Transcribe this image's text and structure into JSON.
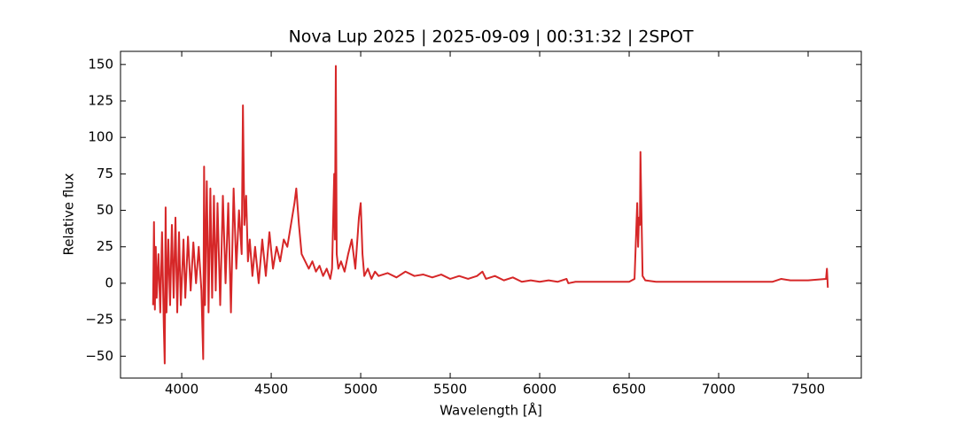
{
  "chart_data": {
    "type": "line",
    "title": "Nova Lup 2025 | 2025-09-09 | 00:31:32 | 2SPOT",
    "x_label": "Wavelength [Å]",
    "y_label": "Relative flux",
    "color": "#d62728",
    "xlim": [
      3658,
      7797
    ],
    "ylim": [
      -65,
      159
    ],
    "xticks": [
      4000,
      4500,
      5000,
      5500,
      6000,
      6500,
      7000,
      7500
    ],
    "yticks": [
      {
        "value": -50,
        "label": "−50"
      },
      {
        "value": -25,
        "label": "−25"
      },
      0,
      25,
      50,
      75,
      100,
      125,
      150
    ],
    "x": [
      3840,
      3845,
      3850,
      3855,
      3860,
      3870,
      3880,
      3890,
      3900,
      3905,
      3910,
      3915,
      3925,
      3935,
      3945,
      3955,
      3965,
      3975,
      3985,
      3995,
      4010,
      4020,
      4035,
      4050,
      4065,
      4080,
      4095,
      4110,
      4120,
      4125,
      4130,
      4140,
      4150,
      4160,
      4170,
      4180,
      4190,
      4200,
      4215,
      4230,
      4245,
      4260,
      4275,
      4290,
      4305,
      4320,
      4335,
      4342,
      4350,
      4360,
      4370,
      4380,
      4395,
      4410,
      4430,
      4450,
      4470,
      4490,
      4510,
      4530,
      4550,
      4570,
      4590,
      4610,
      4630,
      4640,
      4655,
      4670,
      4690,
      4710,
      4730,
      4750,
      4770,
      4790,
      4810,
      4830,
      4840,
      4852,
      4856,
      4861,
      4866,
      4875,
      4890,
      4910,
      4930,
      4950,
      4970,
      4990,
      5000,
      5010,
      5020,
      5040,
      5060,
      5080,
      5100,
      5150,
      5200,
      5250,
      5300,
      5350,
      5400,
      5450,
      5500,
      5550,
      5600,
      5650,
      5680,
      5700,
      5750,
      5800,
      5850,
      5900,
      5950,
      6000,
      6050,
      6100,
      6150,
      6160,
      6200,
      6300,
      6400,
      6450,
      6500,
      6530,
      6545,
      6550,
      6555,
      6560,
      6563,
      6567,
      6575,
      6590,
      6650,
      6800,
      7000,
      7200,
      7300,
      7350,
      7400,
      7500,
      7600,
      7605,
      7610
    ],
    "values": [
      -15,
      42,
      -18,
      25,
      -10,
      20,
      -20,
      35,
      -30,
      -55,
      52,
      -20,
      30,
      -15,
      40,
      -10,
      45,
      -20,
      35,
      -15,
      30,
      -10,
      32,
      -5,
      28,
      0,
      25,
      -5,
      -52,
      80,
      -15,
      70,
      -20,
      65,
      -10,
      60,
      -5,
      55,
      -15,
      60,
      0,
      55,
      -20,
      65,
      10,
      50,
      20,
      122,
      40,
      60,
      15,
      30,
      5,
      25,
      0,
      30,
      5,
      35,
      10,
      25,
      15,
      30,
      25,
      40,
      55,
      65,
      40,
      20,
      15,
      10,
      15,
      8,
      12,
      5,
      10,
      3,
      10,
      75,
      30,
      149,
      20,
      10,
      15,
      8,
      20,
      30,
      10,
      45,
      55,
      20,
      5,
      10,
      3,
      8,
      5,
      7,
      4,
      8,
      5,
      6,
      4,
      6,
      3,
      5,
      3,
      5,
      8,
      3,
      5,
      2,
      4,
      1,
      2,
      1,
      2,
      1,
      3,
      0,
      1,
      1,
      1,
      1,
      1,
      3,
      55,
      25,
      45,
      40,
      90,
      60,
      5,
      2,
      1,
      1,
      1,
      1,
      1,
      3,
      2,
      2,
      3,
      10,
      -3
    ]
  }
}
